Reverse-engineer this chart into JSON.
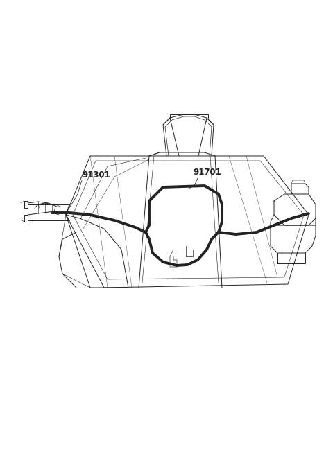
{
  "background_color": "#ffffff",
  "line_color": "#222222",
  "thin_lw": 0.7,
  "med_lw": 1.0,
  "thick_lw": 2.8,
  "label_91301": "91301",
  "label_91701": "91701",
  "label_fontsize": 8.5,
  "figsize": [
    4.8,
    6.55
  ],
  "dpi": 100
}
